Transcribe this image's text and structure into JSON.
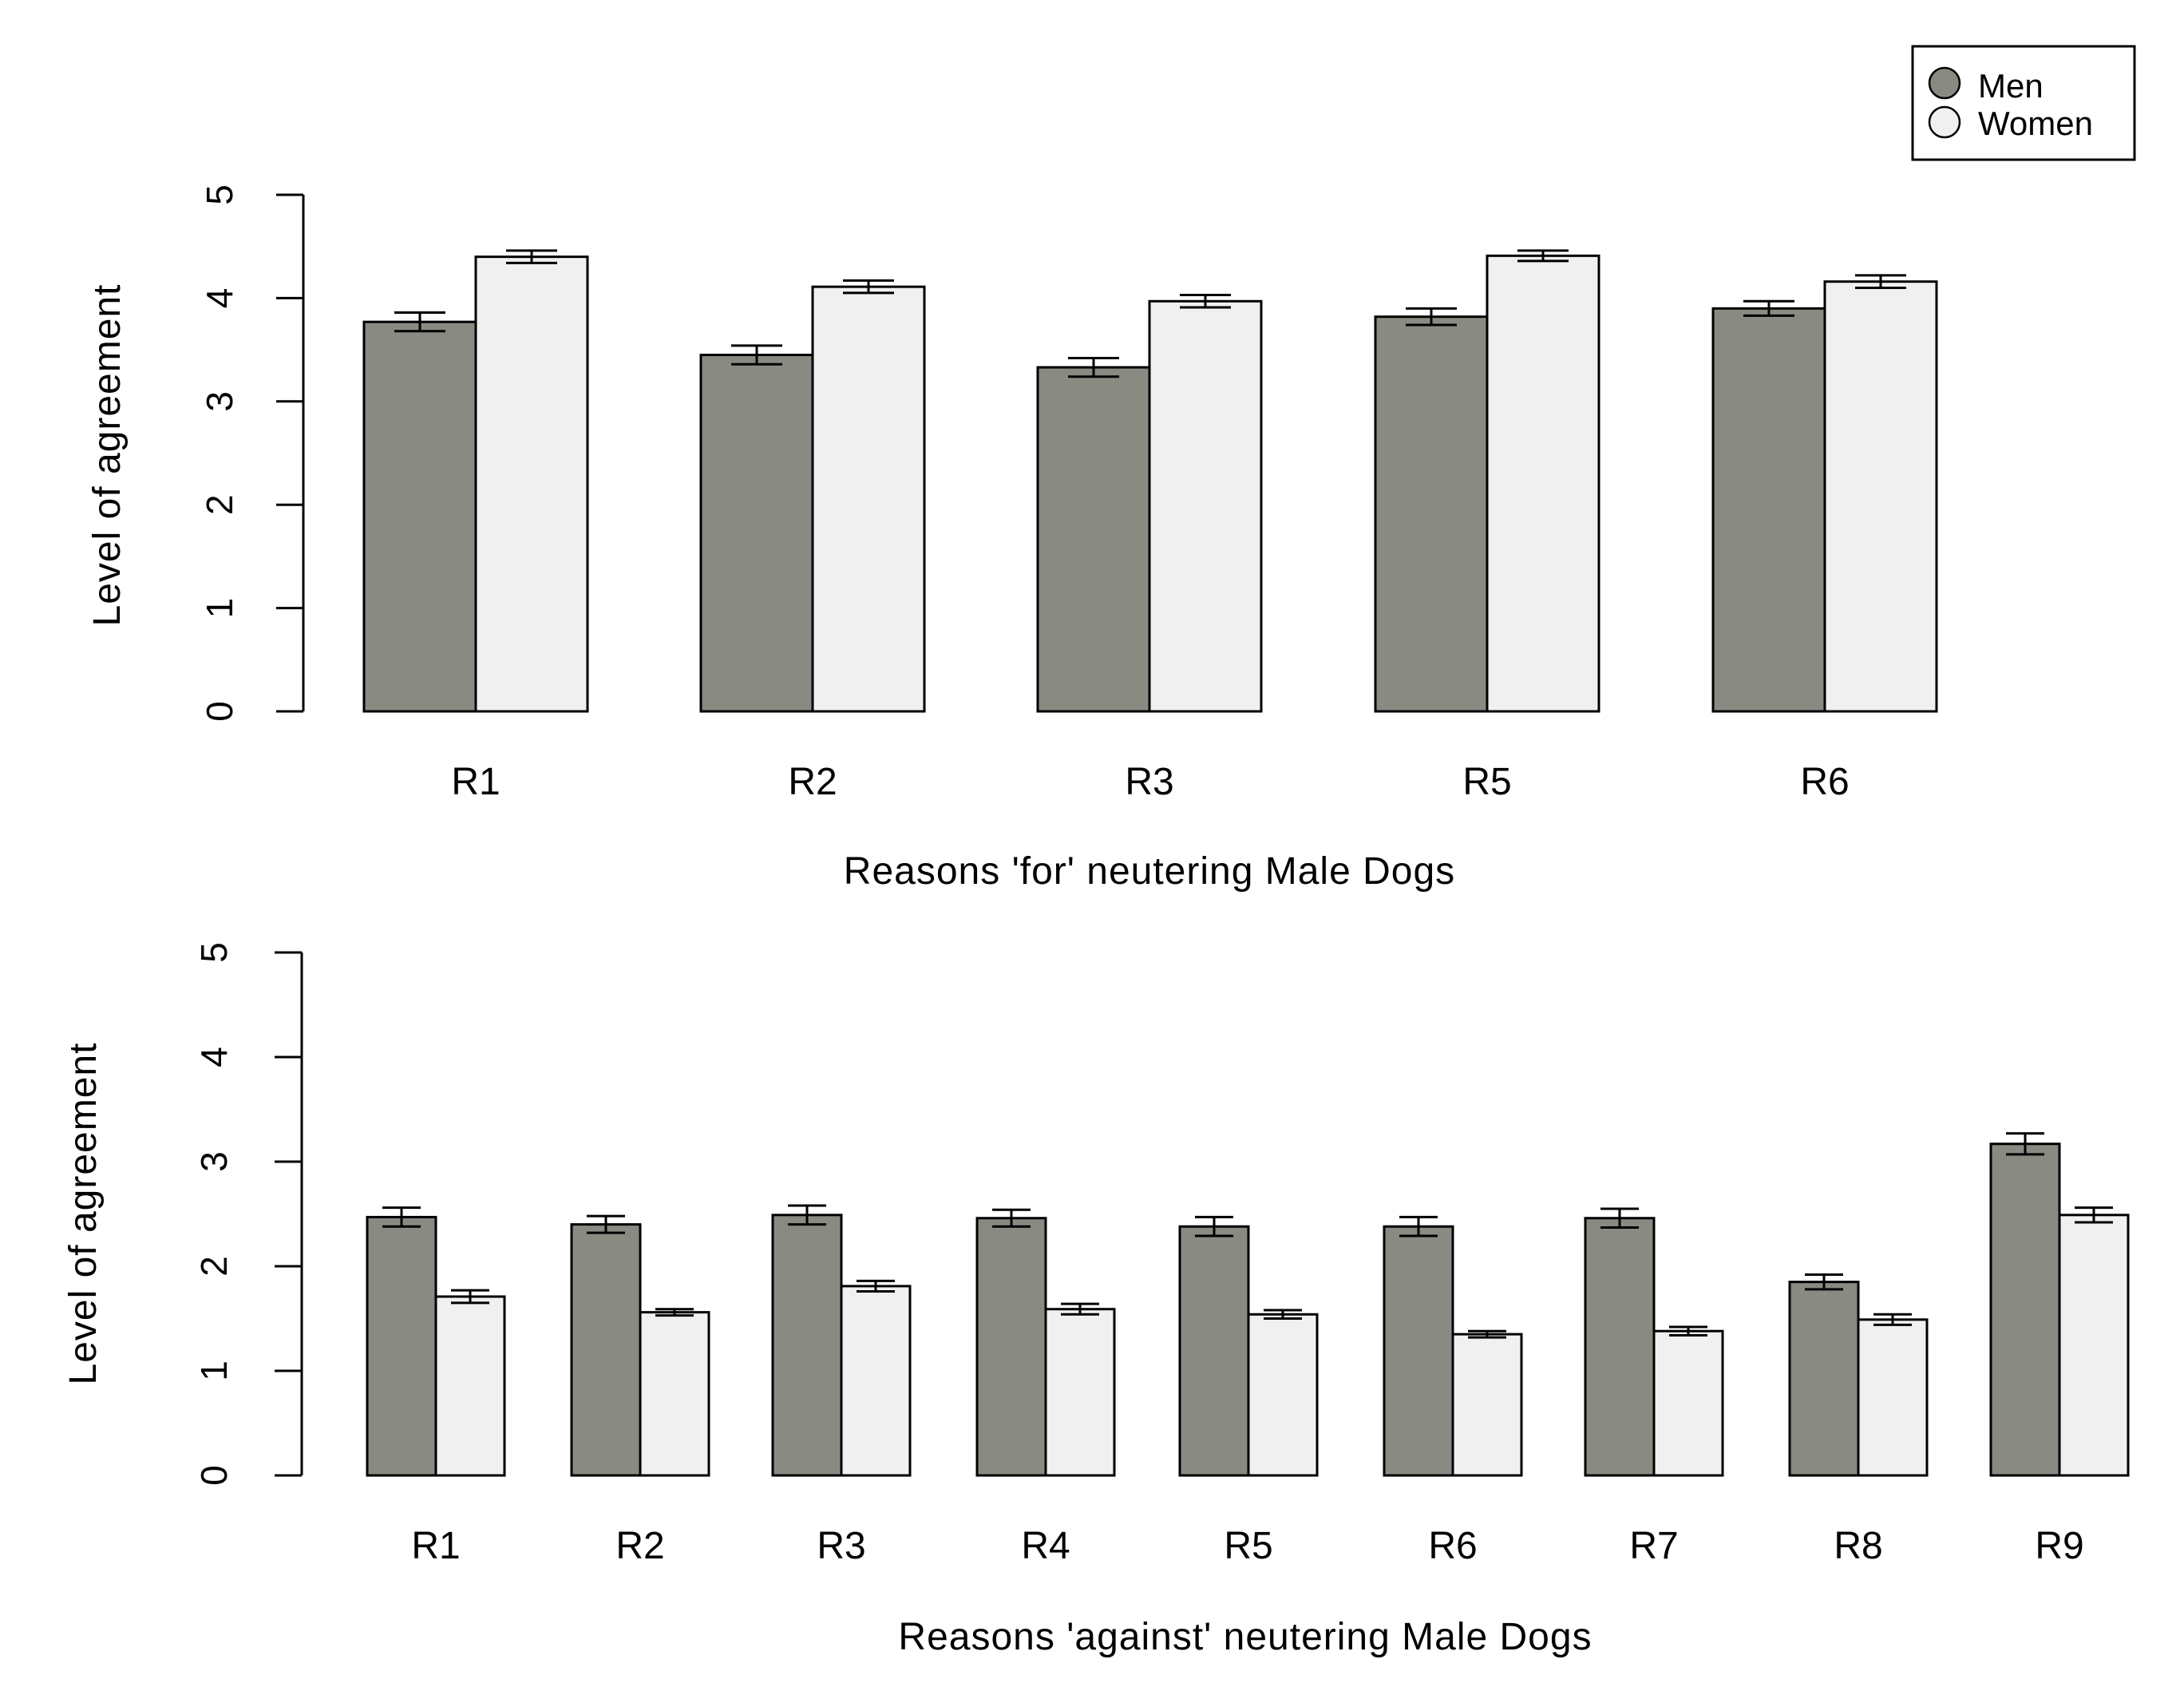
{
  "colors": {
    "men": "#898a82",
    "women": "#f0f0f0",
    "stroke": "#000000"
  },
  "legend": {
    "location": "top-right",
    "entries": [
      {
        "label": "Men",
        "color": "#898a82"
      },
      {
        "label": "Women",
        "color": "#f0f0f0"
      }
    ]
  },
  "chart_data": [
    {
      "type": "bar",
      "title": "",
      "xlabel": "Reasons 'for' neutering Male Dogs",
      "ylabel": "Level of agreement",
      "ylim": [
        0,
        5
      ],
      "yticks": [
        "0",
        "1",
        "2",
        "3",
        "4",
        "5"
      ],
      "categories": [
        "R1",
        "R2",
        "R3",
        "R5",
        "R6"
      ],
      "series": [
        {
          "name": "Men",
          "values": [
            3.77,
            3.45,
            3.33,
            3.82,
            3.9
          ],
          "errors": [
            0.09,
            0.09,
            0.09,
            0.08,
            0.07
          ]
        },
        {
          "name": "Women",
          "values": [
            4.4,
            4.11,
            3.97,
            4.41,
            4.16
          ],
          "errors": [
            0.06,
            0.06,
            0.06,
            0.05,
            0.06
          ]
        }
      ]
    },
    {
      "type": "bar",
      "title": "",
      "xlabel": "Reasons 'against' neutering Male Dogs",
      "ylabel": "Level of agreement",
      "ylim": [
        0,
        5
      ],
      "yticks": [
        "0",
        "1",
        "2",
        "3",
        "4",
        "5"
      ],
      "categories": [
        "R1",
        "R2",
        "R3",
        "R4",
        "R5",
        "R6",
        "R7",
        "R8",
        "R9"
      ],
      "series": [
        {
          "name": "Men",
          "values": [
            2.47,
            2.4,
            2.49,
            2.46,
            2.38,
            2.38,
            2.46,
            1.85,
            3.17
          ]
        },
        {
          "name": "Women",
          "values": [
            1.71,
            1.56,
            1.81,
            1.59,
            1.54,
            1.35,
            1.38,
            1.49,
            2.49
          ]
        }
      ],
      "errors": [
        [
          0.09,
          0.08,
          0.09,
          0.08,
          0.09,
          0.09,
          0.09,
          0.07,
          0.1
        ],
        [
          0.06,
          0.03,
          0.05,
          0.05,
          0.04,
          0.03,
          0.04,
          0.05,
          0.07
        ]
      ]
    }
  ]
}
